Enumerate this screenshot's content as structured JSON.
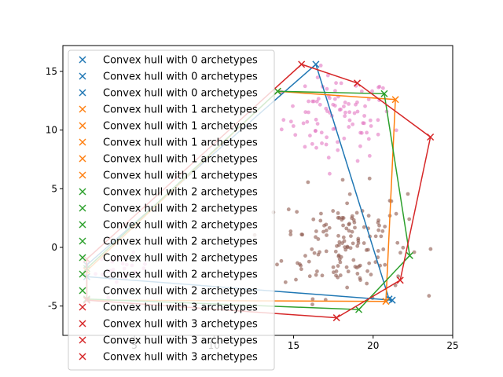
{
  "chart_data": {
    "type": "scatter",
    "title": "",
    "xlabel": "",
    "ylabel": "",
    "xlim": [
      0.5,
      25
    ],
    "ylim": [
      -7.5,
      17.2
    ],
    "xticks": [
      5,
      10,
      15,
      20,
      25
    ],
    "yticks": [
      -5,
      0,
      5,
      10,
      15
    ],
    "grid": false,
    "legend_position": "upper-left",
    "colors": {
      "blue": "#1f77b4",
      "orange": "#ff7f0e",
      "green": "#2ca02c",
      "red": "#d62728",
      "brown": "#8c564b",
      "pink": "#e377c2"
    },
    "legend": [
      {
        "label": "Convex hull with 0 archetypes",
        "color": "#1f77b4"
      },
      {
        "label": "Convex hull with 0 archetypes",
        "color": "#1f77b4"
      },
      {
        "label": "Convex hull with 0 archetypes",
        "color": "#1f77b4"
      },
      {
        "label": "Convex hull with 1 archetypes",
        "color": "#ff7f0e"
      },
      {
        "label": "Convex hull with 1 archetypes",
        "color": "#ff7f0e"
      },
      {
        "label": "Convex hull with 1 archetypes",
        "color": "#ff7f0e"
      },
      {
        "label": "Convex hull with 1 archetypes",
        "color": "#ff7f0e"
      },
      {
        "label": "Convex hull with 1 archetypes",
        "color": "#ff7f0e"
      },
      {
        "label": "Convex hull with 2 archetypes",
        "color": "#2ca02c"
      },
      {
        "label": "Convex hull with 2 archetypes",
        "color": "#2ca02c"
      },
      {
        "label": "Convex hull with 2 archetypes",
        "color": "#2ca02c"
      },
      {
        "label": "Convex hull with 2 archetypes",
        "color": "#2ca02c"
      },
      {
        "label": "Convex hull with 2 archetypes",
        "color": "#2ca02c"
      },
      {
        "label": "Convex hull with 2 archetypes",
        "color": "#2ca02c"
      },
      {
        "label": "Convex hull with 2 archetypes",
        "color": "#2ca02c"
      },
      {
        "label": "Convex hull with 3 archetypes",
        "color": "#d62728"
      },
      {
        "label": "Convex hull with 3 archetypes",
        "color": "#d62728"
      },
      {
        "label": "Convex hull with 3 archetypes",
        "color": "#d62728"
      },
      {
        "label": "Convex hull with 3 archetypes",
        "color": "#d62728"
      }
    ],
    "hulls": [
      {
        "color": "#1f77b4",
        "archetypes": 0,
        "points": [
          [
            2.0,
            -1.5
          ],
          [
            16.4,
            15.6
          ],
          [
            21.0,
            -4.4
          ],
          [
            21.2,
            -4.5
          ],
          [
            2.0,
            -2.5
          ]
        ]
      },
      {
        "color": "#ff7f0e",
        "archetypes": 1,
        "points": [
          [
            2.0,
            -2.0
          ],
          [
            14.0,
            13.3
          ],
          [
            21.4,
            12.6
          ],
          [
            20.8,
            -4.6
          ],
          [
            2.0,
            -4.5
          ]
        ]
      },
      {
        "color": "#2ca02c",
        "archetypes": 2,
        "points": [
          [
            2.0,
            -1.8
          ],
          [
            14.0,
            13.3
          ],
          [
            20.7,
            13.1
          ],
          [
            22.3,
            -0.7
          ],
          [
            19.1,
            -5.3
          ],
          [
            2.0,
            -4.4
          ]
        ]
      },
      {
        "color": "#d62728",
        "archetypes": 3,
        "points": [
          [
            2.0,
            -1.0
          ],
          [
            15.5,
            15.6
          ],
          [
            19.0,
            14.0
          ],
          [
            23.6,
            9.4
          ],
          [
            21.7,
            -2.8
          ],
          [
            17.7,
            -6.0
          ],
          [
            2.0,
            -4.5
          ]
        ]
      }
    ],
    "scatter_series": [
      {
        "color": "#e377c2",
        "center": [
          17.8,
          11.0
        ],
        "spread": [
          2.3,
          2.4
        ],
        "count": 95
      },
      {
        "color": "#8c564b",
        "center": [
          18.2,
          0.5
        ],
        "spread": [
          2.6,
          3.1
        ],
        "count": 150
      },
      {
        "color": "#e377c2",
        "center": [
          4.2,
          -2.0
        ],
        "spread": [
          1.1,
          0.9
        ],
        "count": 25
      }
    ]
  }
}
